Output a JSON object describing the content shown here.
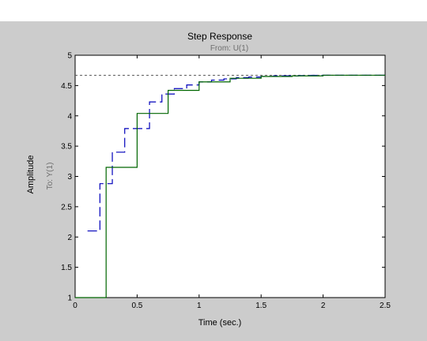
{
  "figure": {
    "title": "Step Response",
    "subtitle": "From: U(1)",
    "output_label": "To: Y(1)",
    "colors": {
      "window_background": "#cccccc",
      "axes_background": "#ffffff",
      "continuous_series": "#0000bb",
      "discrete_series": "#006600",
      "reference_line": "#555555"
    }
  },
  "chart_data": {
    "type": "line",
    "title": "Step Response",
    "subtitle": "From: U(1)",
    "xlabel": "Time (sec.)",
    "ylabel": "Amplitude",
    "xlim": [
      0,
      2.5
    ],
    "ylim": [
      1,
      5
    ],
    "xticks": [
      "0",
      "0.5",
      "1",
      "1.5",
      "2",
      "2.5"
    ],
    "yticks": [
      "1",
      "1.5",
      "2",
      "2.5",
      "3",
      "3.5",
      "4",
      "4.5",
      "5"
    ],
    "grid": false,
    "reference_line": {
      "y": 4.67,
      "style": "dotted"
    },
    "series": [
      {
        "style": "dashed-stairs",
        "color": "#0000bb",
        "steps": [
          [
            0.1,
            2.1
          ],
          [
            0.2,
            2.88
          ],
          [
            0.3,
            3.4
          ],
          [
            0.4,
            3.79
          ],
          [
            0.5,
            3.79
          ],
          [
            0.6,
            4.23
          ],
          [
            0.7,
            4.36
          ],
          [
            0.8,
            4.45
          ],
          [
            0.9,
            4.51
          ],
          [
            1.0,
            4.56
          ],
          [
            1.1,
            4.59
          ],
          [
            1.2,
            4.61
          ],
          [
            1.3,
            4.63
          ],
          [
            1.4,
            4.64
          ],
          [
            1.5,
            4.65
          ],
          [
            1.6,
            4.66
          ],
          [
            1.7,
            4.66
          ],
          [
            1.8,
            4.665
          ],
          [
            1.9,
            4.668
          ],
          [
            2.0,
            4.67
          ]
        ],
        "end_x": 2.5
      },
      {
        "style": "solid-stairs",
        "color": "#006600",
        "steps": [
          [
            0,
            1.0
          ],
          [
            0.25,
            3.15
          ],
          [
            0.5,
            4.04
          ],
          [
            0.75,
            4.42
          ],
          [
            1.0,
            4.56
          ],
          [
            1.25,
            4.62
          ],
          [
            1.5,
            4.65
          ],
          [
            1.75,
            4.66
          ],
          [
            2.0,
            4.67
          ]
        ],
        "end_x": 2.5
      }
    ]
  }
}
